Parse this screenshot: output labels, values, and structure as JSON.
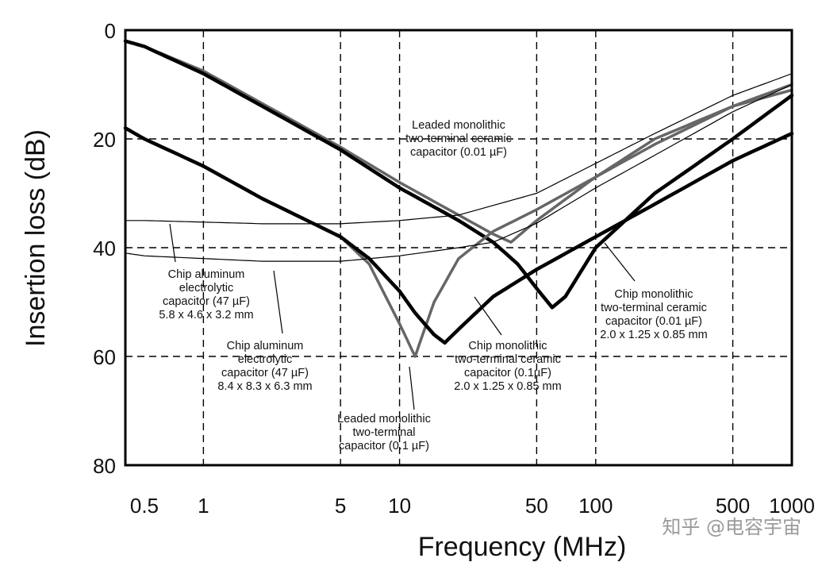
{
  "chart_data": {
    "type": "line",
    "title": "",
    "xlabel": "Frequency (MHz)",
    "ylabel": "Insertion loss (dB)",
    "xscale": "log",
    "xlim": [
      0.4,
      1000
    ],
    "ylim": [
      0,
      80
    ],
    "y_inverted": true,
    "grid": "dashed",
    "x_ticks": [
      0.5,
      1,
      5,
      10,
      50,
      100,
      500,
      1000
    ],
    "x_tick_labels": [
      "0.5",
      "1",
      "5",
      "10",
      "50",
      "100",
      "500",
      "1000"
    ],
    "y_ticks": [
      0,
      20,
      40,
      60,
      80
    ],
    "y_tick_labels": [
      "0",
      "20",
      "40",
      "60",
      "80"
    ],
    "grid_x": [
      1,
      5,
      10,
      50,
      100,
      500
    ],
    "grid_y": [
      20,
      40,
      60
    ],
    "series": [
      {
        "name": "Leaded monolithic two-terminal ceramic capacitor (0.01 µF)",
        "color": "#666666",
        "width": 3.5,
        "x": [
          0.4,
          0.5,
          1,
          2,
          5,
          10,
          20,
          30,
          37,
          50,
          100,
          200,
          500,
          1000
        ],
        "y": [
          2,
          3,
          7.5,
          13.5,
          21.5,
          28,
          34,
          37.5,
          39,
          35,
          27,
          20,
          14,
          10
        ]
      },
      {
        "name": "Chip monolithic two-terminal ceramic capacitor (0.01 µF) 2.0 x 1.25 x 0.85 mm",
        "color": "#000000",
        "width": 4.5,
        "x": [
          0.4,
          0.5,
          1,
          2,
          5,
          10,
          20,
          30,
          40,
          50,
          60,
          70,
          100,
          200,
          500,
          1000
        ],
        "y": [
          2,
          3,
          8,
          14,
          22,
          29,
          35,
          39,
          43,
          47.5,
          51,
          49,
          40,
          30,
          20,
          12
        ]
      },
      {
        "name": "Leaded monolithic two-terminal capacitor (0.1 µF)",
        "color": "#666666",
        "width": 3.5,
        "x": [
          0.4,
          0.5,
          1,
          2,
          5,
          7,
          10,
          12,
          15,
          20,
          30,
          50,
          100,
          200,
          500,
          1000
        ],
        "y": [
          18,
          20,
          25,
          31,
          38,
          43,
          54,
          60,
          50,
          42,
          37,
          33,
          27,
          21,
          14,
          11
        ]
      },
      {
        "name": "Chip monolithic two-terminal ceramic capacitor (0.1µF) 2.0 x 1.25 x 0.85 mm",
        "color": "#000000",
        "width": 4.5,
        "x": [
          0.4,
          0.5,
          1,
          2,
          5,
          7,
          10,
          12,
          15,
          17,
          20,
          30,
          50,
          100,
          200,
          500,
          1000
        ],
        "y": [
          18,
          20,
          25,
          31,
          38,
          42,
          48,
          52,
          56,
          57.5,
          55,
          49,
          44,
          38,
          32,
          24,
          19
        ]
      },
      {
        "name": "Chip aluminum electrolytic capacitor (47 µF) 5.8 x 4.6 x 3.2 mm",
        "color": "#000000",
        "width": 1.2,
        "x": [
          0.4,
          0.5,
          1,
          2,
          5,
          10,
          20,
          50,
          100,
          200,
          500,
          1000
        ],
        "y": [
          35,
          35,
          35.3,
          35.6,
          35.6,
          35,
          34,
          30,
          24.5,
          19,
          12,
          8
        ]
      },
      {
        "name": "Chip aluminum electrolytic capacitor (47 µF) 8.4 x 8.3 x 6.3 mm",
        "color": "#000000",
        "width": 1.2,
        "x": [
          0.4,
          0.5,
          1,
          2,
          5,
          10,
          20,
          30,
          50,
          100,
          200,
          500,
          1000
        ],
        "y": [
          41,
          41.5,
          42,
          42.5,
          42.5,
          41.5,
          40,
          39,
          35.5,
          29,
          23,
          15,
          10
        ]
      }
    ],
    "annotations": [
      {
        "name": "leaded-001",
        "lines": [
          "Leaded monolithic",
          "two-terminal ceramic",
          "capacitor (0.01 µF)"
        ]
      },
      {
        "name": "chip-alu-small",
        "lines": [
          "Chip aluminum",
          "electrolytic",
          "capacitor (47 µF)",
          "5.8 x 4.6 x 3.2 mm"
        ]
      },
      {
        "name": "chip-alu-large",
        "lines": [
          "Chip aluminum",
          "electrolytic",
          "capacitor (47 µF)",
          "8.4 x 8.3 x 6.3 mm"
        ]
      },
      {
        "name": "leaded-01",
        "lines": [
          "Leaded monolithic",
          "two-terminal",
          "capacitor (0.1 µF)"
        ]
      },
      {
        "name": "chip-01",
        "lines": [
          "Chip monolithic",
          "two-terminal ceramic",
          "capacitor (0.1µF)",
          "2.0 x 1.25 x 0.85 mm"
        ]
      },
      {
        "name": "chip-001",
        "lines": [
          "Chip monolithic",
          "two-terminal ceramic",
          "capacitor (0.01 µF)",
          "2.0 x 1.25 x 0.85 mm"
        ]
      }
    ]
  },
  "watermark": "知乎 @电容宇宙"
}
